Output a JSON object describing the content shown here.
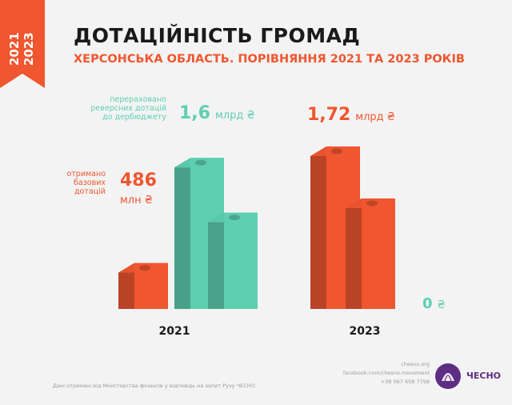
{
  "ribbon": {
    "year_top": "2021",
    "year_bottom": "2023"
  },
  "header": {
    "title": "ДОТАЦІЙНІСТЬ ГРОМАД",
    "subtitle": "ХЕРСОНСЬКА ОБЛАСТЬ. ПОРІВНЯННЯ 2021 ТА 2023 РОКІВ"
  },
  "colors": {
    "base_subsidies": "#f0562f",
    "reverse_subsidies": "#5ecfb1",
    "title": "#1a1a1a",
    "logo": "#5c2d83"
  },
  "chart_data": {
    "type": "bar",
    "categories": [
      "2021",
      "2023"
    ],
    "series": [
      {
        "name": "отримано базових дотацій",
        "label_lines": [
          "отримано",
          "базових",
          "дотацій"
        ],
        "color": "#f0562f",
        "values": [
          486,
          1720
        ],
        "value_labels": [
          {
            "number": "486",
            "unit": "млн ₴"
          },
          {
            "number": "1,72",
            "unit": "млрд ₴"
          }
        ]
      },
      {
        "name": "перераховано реверсних дотацій до дербюджету",
        "label_lines": [
          "перераховано",
          "реверсних дотацій",
          "до дербюджету"
        ],
        "color": "#5ecfb1",
        "values": [
          1600,
          0
        ],
        "value_labels": [
          {
            "number": "1,6",
            "unit": "млрд ₴"
          },
          {
            "number": "0",
            "unit": "₴"
          }
        ]
      }
    ],
    "extra_bars": [
      {
        "category": "2021",
        "color": "#5ecfb1",
        "value": 1020,
        "labeled": false
      },
      {
        "category": "2023",
        "color": "#f0562f",
        "value": 1170,
        "labeled": false
      }
    ],
    "value_unit": "млн ₴"
  },
  "footer": {
    "source": "Дані отримані від Міністерства фінансів у відповідь на запит Руху ЧЕСНО.",
    "contacts": [
      "chesno.org",
      "facebook.com/chesno.movement",
      "+38 067 658 7798"
    ],
    "logo_text": "ЧЕСНО"
  }
}
